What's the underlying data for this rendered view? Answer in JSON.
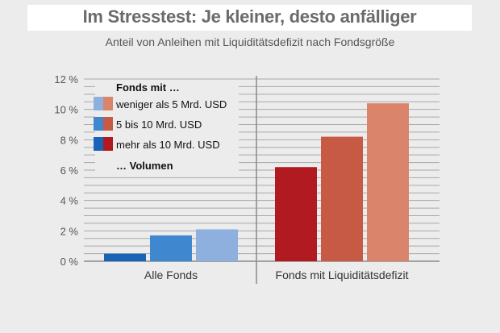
{
  "title": "Im Stresstest: Je kleiner, desto anfälliger",
  "subtitle": "Anteil von Anleihen mit Liquiditätsdefizit nach Fondsgröße",
  "colors": {
    "background": "#ececec",
    "grid": "#a8a8a8",
    "axis": "#8a8a8a",
    "all_small": "#8db0de",
    "all_mid": "#3f87cf",
    "all_large": "#1a64b8",
    "def_small": "#da846b",
    "def_mid": "#c75a44",
    "def_large": "#b21a22"
  },
  "chart_data": {
    "type": "bar",
    "title": "Im Stresstest: Je kleiner, desto anfälliger",
    "subtitle": "Anteil von Anleihen mit Liquiditätsdefizit nach Fondsgröße",
    "categories": [
      "Alle Fonds",
      "Fonds mit Liquiditätsdefizit"
    ],
    "series": [
      {
        "name": "mehr als 10 Mrd. USD",
        "values": [
          0.5,
          6.2
        ]
      },
      {
        "name": "5 bis 10 Mrd. USD",
        "values": [
          1.7,
          8.2
        ]
      },
      {
        "name": "weniger als 5 Mrd. USD",
        "values": [
          2.1,
          10.4
        ]
      }
    ],
    "ylim": [
      0,
      12
    ],
    "yticks": [
      0,
      2,
      4,
      6,
      8,
      10,
      12
    ],
    "ytick_labels": [
      "0 %",
      "2 %",
      "4 %",
      "6 %",
      "8 %",
      "10 %",
      "12 %"
    ],
    "xlabel": "",
    "ylabel": "",
    "grid": true,
    "legend": {
      "placement": "top-left",
      "heading": "Fonds mit …",
      "footer": "… Volumen",
      "items": [
        {
          "label": "weniger als 5 Mrd. USD"
        },
        {
          "label": "5 bis 10 Mrd. USD"
        },
        {
          "label": "mehr als 10 Mrd. USD"
        }
      ]
    }
  }
}
